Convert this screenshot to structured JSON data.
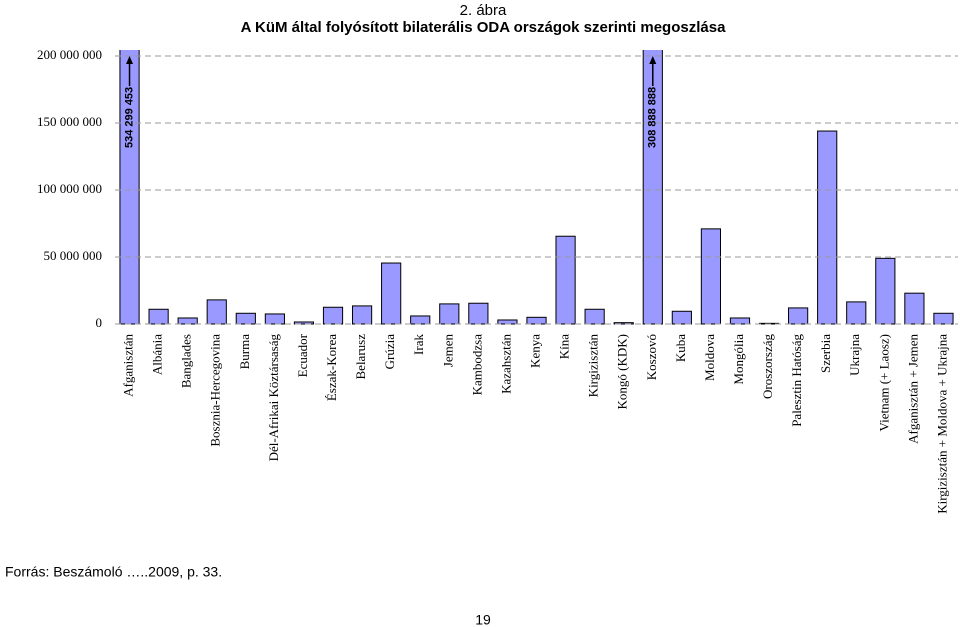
{
  "chart_data": {
    "type": "bar",
    "title": "2. ábra",
    "subtitle": "A KüM által folyósított bilaterális ODA országok szerinti megoszlása",
    "categories": [
      "Afganisztán",
      "Albánia",
      "Banglades",
      "Bosznia-Hercegovina",
      "Burma",
      "Dél-Afrikai Köztársaság",
      "Ecuador",
      "Észak-Korea",
      "Belarusz",
      "Grúzia",
      "Irak",
      "Jemen",
      "Kambodzsa",
      "Kazahsztán",
      "Kenya",
      "Kína",
      "Kirgizisztán",
      "Kongó (KDK)",
      "Koszovó",
      "Kuba",
      "Moldova",
      "Mongólia",
      "Oroszország",
      "Palesztin Hatóság",
      "Szerbia",
      "Ukrajna",
      "Vietnam (+ Laosz)",
      "Afganisztán + Jemen",
      "Kirgizisztán + Moldova + Ukrajna"
    ],
    "values": [
      534299453,
      11000000,
      4500000,
      18000000,
      8000000,
      7500000,
      1500000,
      12500000,
      13500000,
      45500000,
      6000000,
      15000000,
      15500000,
      3000000,
      5000000,
      65500000,
      11000000,
      1000000,
      308888888,
      9500000,
      71000000,
      4500000,
      500000,
      12000000,
      144000000,
      16500000,
      49000000,
      23000000,
      8000000
    ],
    "value_labels": [
      "534 299 453",
      null,
      null,
      null,
      null,
      null,
      null,
      null,
      null,
      null,
      null,
      null,
      null,
      null,
      null,
      null,
      null,
      null,
      "308 888 888",
      null,
      null,
      null,
      null,
      null,
      null,
      null,
      null,
      null,
      null
    ],
    "color": "#9999ff",
    "ylim": [
      0,
      200000000
    ],
    "yticks": [
      0,
      {
        "value": 50000000,
        "label": "50 000 000"
      },
      {
        "value": 100000000,
        "label": "100 000 000"
      },
      {
        "value": 150000000,
        "label": "150 000 000"
      },
      {
        "value": 200000000,
        "label": "200 000 000"
      }
    ],
    "grid": true
  },
  "source": "Forrás: Beszámoló …..2009, p. 33.",
  "page_number": "19"
}
